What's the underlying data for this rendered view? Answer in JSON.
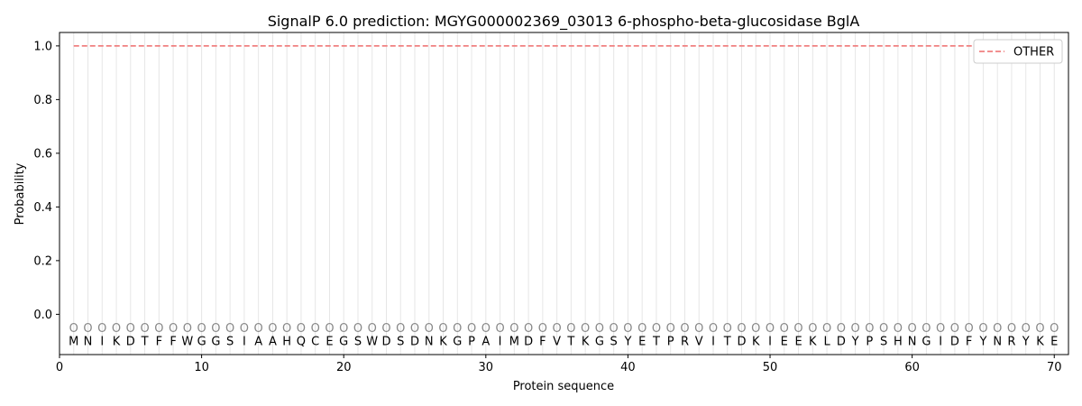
{
  "chart_data": {
    "type": "line",
    "title": "SignalP 6.0 prediction: MGYG000002369_03013 6-phospho-beta-glucosidase BglA",
    "xlabel": "Protein sequence",
    "ylabel": "Probability",
    "xlim": [
      0,
      71
    ],
    "ylim": [
      -0.15,
      1.05
    ],
    "xticks": [
      0,
      10,
      20,
      30,
      40,
      50,
      60,
      70
    ],
    "yticks": [
      0.0,
      0.2,
      0.4,
      0.6,
      0.8,
      1.0
    ],
    "grid": "vertical lines at each residue",
    "legend_position": "top-right",
    "sequence": [
      "M",
      "N",
      "I",
      "K",
      "D",
      "T",
      "F",
      "F",
      "W",
      "G",
      "G",
      "S",
      "I",
      "A",
      "A",
      "H",
      "Q",
      "C",
      "E",
      "G",
      "S",
      "W",
      "D",
      "S",
      "D",
      "N",
      "K",
      "G",
      "P",
      "A",
      "I",
      "M",
      "D",
      "F",
      "V",
      "T",
      "K",
      "G",
      "S",
      "Y",
      "E",
      "T",
      "P",
      "R",
      "V",
      "I",
      "T",
      "D",
      "K",
      "I",
      "E",
      "E",
      "K",
      "L",
      "D",
      "Y",
      "P",
      "S",
      "H",
      "N",
      "G",
      "I",
      "D",
      "F",
      "Y",
      "N",
      "R",
      "Y",
      "K",
      "E"
    ],
    "region_label": "O",
    "series": [
      {
        "name": "OTHER",
        "color": "#f08080",
        "style": "dashed",
        "x_start": 1,
        "x_end": 70,
        "value": 1.0
      }
    ]
  }
}
